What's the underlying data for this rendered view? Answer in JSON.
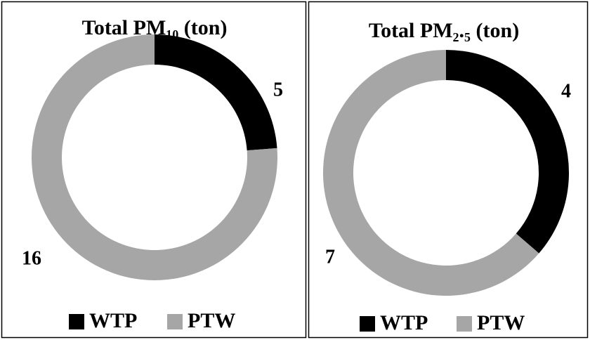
{
  "chart_data": [
    {
      "type": "donut",
      "title": "Total PM₁₀ (ton)",
      "categories": [
        "WTP",
        "PTW"
      ],
      "values": [
        5,
        16
      ],
      "colors": [
        "#000000",
        "#a6a6a6"
      ],
      "legend": "bottom"
    },
    {
      "type": "donut",
      "title": "Total PM₂.₅ (ton)",
      "categories": [
        "WTP",
        "PTW"
      ],
      "values": [
        4,
        7
      ],
      "colors": [
        "#000000",
        "#a6a6a6"
      ],
      "legend": "bottom"
    }
  ]
}
